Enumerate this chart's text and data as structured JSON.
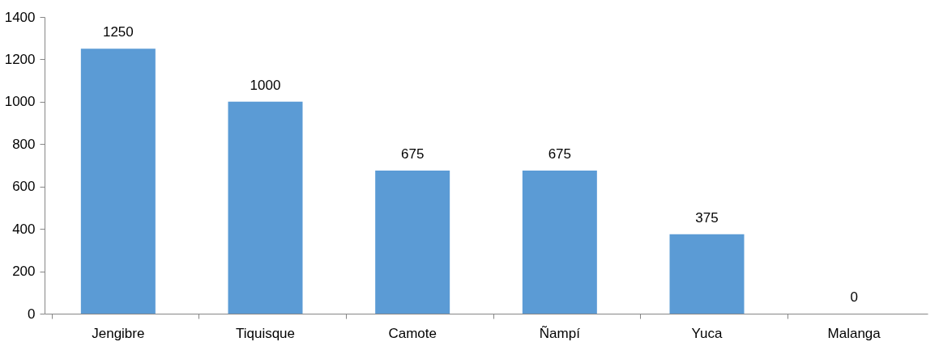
{
  "chart_data": {
    "type": "bar",
    "categories": [
      "Jengibre",
      "Tiquisque",
      "Camote",
      "Ñampí",
      "Yuca",
      "Malanga"
    ],
    "values": [
      1250,
      1000,
      675,
      675,
      375,
      0
    ],
    "color": "#5b9bd5",
    "ylim": [
      0,
      1400
    ],
    "yticks": [
      0,
      200,
      400,
      600,
      800,
      1000,
      1200,
      1400
    ],
    "data_labels": true,
    "grid": false
  }
}
